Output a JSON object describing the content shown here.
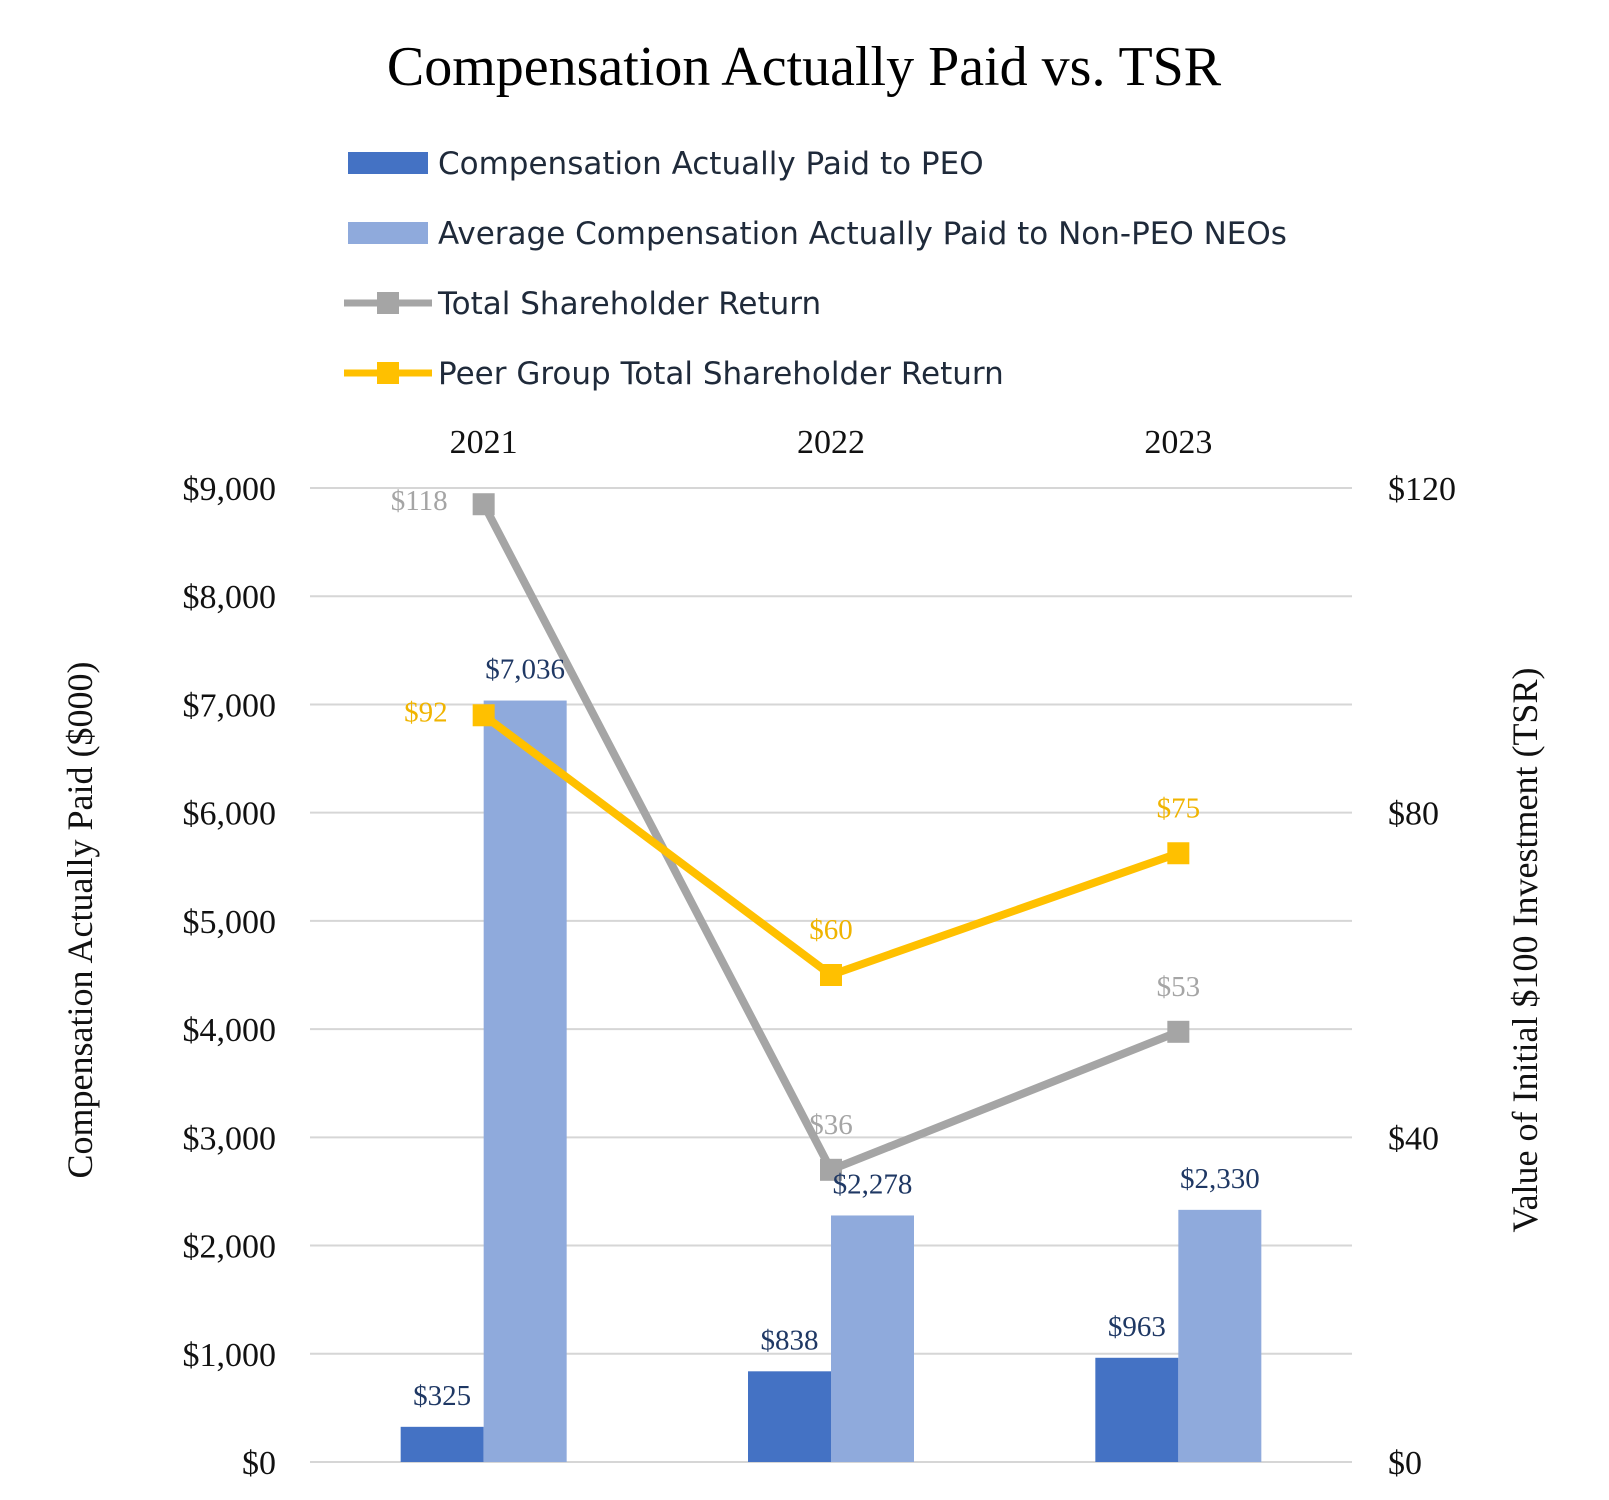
{
  "chart_data": {
    "type": "bar",
    "title": "Compensation Actually Paid vs. TSR",
    "categories": [
      "2021",
      "2022",
      "2023"
    ],
    "ylabel": "Compensation Actually Paid ($000)",
    "y2label": "Value of Initial $100 Investment (TSR)",
    "ylim": [
      0,
      9000
    ],
    "y2lim": [
      0,
      120
    ],
    "y_ticks": [
      "$0",
      "$1,000",
      "$2,000",
      "$3,000",
      "$4,000",
      "$5,000",
      "$6,000",
      "$7,000",
      "$8,000",
      "$9,000"
    ],
    "y2_ticks": [
      "$0",
      "$40",
      "$80",
      "$120"
    ],
    "grid": true,
    "legend_position": "top",
    "series": [
      {
        "name": "Compensation Actually Paid to PEO",
        "type": "bar",
        "axis": "left",
        "color": "#4472C4",
        "values": [
          325,
          838,
          963
        ],
        "labels": [
          "$325",
          "$838",
          "$963"
        ]
      },
      {
        "name": "Average Compensation Actually Paid to Non-PEO NEOs",
        "type": "bar",
        "axis": "left",
        "color": "#8FAADC",
        "values": [
          7036,
          2278,
          2330
        ],
        "labels": [
          "$7,036",
          "$2,278",
          "$2,330"
        ]
      },
      {
        "name": "Total Shareholder Return",
        "type": "line",
        "axis": "right",
        "color": "#A5A5A5",
        "values": [
          118,
          36,
          53
        ],
        "labels": [
          "$118",
          "$36",
          "$53"
        ]
      },
      {
        "name": "Peer Group Total Shareholder Return",
        "type": "line",
        "axis": "right",
        "color": "#FFC000",
        "values": [
          92,
          60,
          75
        ],
        "labels": [
          "$92",
          "$60",
          "$75"
        ]
      }
    ]
  }
}
